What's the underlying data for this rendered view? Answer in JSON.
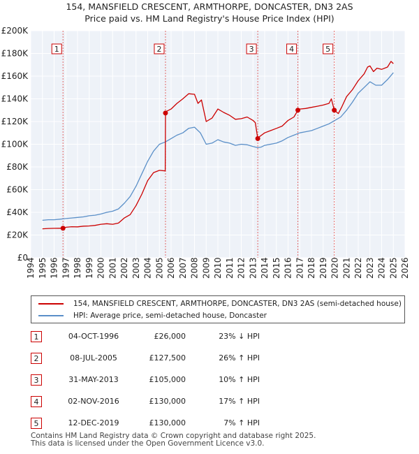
{
  "title_line1": "154, MANSFIELD CRESCENT, ARMTHORPE, DONCASTER, DN3 2AS",
  "title_line2": "Price paid vs. HM Land Registry's House Price Index (HPI)",
  "legend": {
    "property": "154, MANSFIELD CRESCENT, ARMTHORPE, DONCASTER, DN3 2AS (semi-detached house)",
    "hpi": "HPI: Average price, semi-detached house, Doncaster"
  },
  "transactions": [
    {
      "num": "1",
      "date": "04-OCT-1996",
      "price": "£26,000",
      "hpi": "23% ↓ HPI"
    },
    {
      "num": "2",
      "date": "08-JUL-2005",
      "price": "£127,500",
      "hpi": "26% ↑ HPI"
    },
    {
      "num": "3",
      "date": "31-MAY-2013",
      "price": "£105,000",
      "hpi": "10% ↑ HPI"
    },
    {
      "num": "4",
      "date": "02-NOV-2016",
      "price": "£130,000",
      "hpi": "17% ↑ HPI"
    },
    {
      "num": "5",
      "date": "12-DEC-2019",
      "price": "£130,000",
      "hpi": "7% ↑ HPI"
    }
  ],
  "footer_line1": "Contains HM Land Registry data © Crown copyright and database right 2025.",
  "footer_line2": "This data is licensed under the Open Government Licence v3.0.",
  "colors": {
    "property": "#cc0000",
    "hpi": "#5a8fc8",
    "plot_bg": "#eef2f8",
    "grid": "#ffffff",
    "vline": "#e06666"
  },
  "chart_data": {
    "type": "line",
    "title": "154, MANSFIELD CRESCENT, ARMTHORPE, DONCASTER, DN3 2AS",
    "subtitle": "Price paid vs. HM Land Registry's House Price Index (HPI)",
    "xlabel": "",
    "ylabel": "",
    "xlim": [
      1994,
      2026
    ],
    "ylim": [
      0,
      200000
    ],
    "x_ticks": [
      1994,
      1995,
      1996,
      1997,
      1998,
      1999,
      2000,
      2001,
      2002,
      2003,
      2004,
      2005,
      2006,
      2007,
      2008,
      2009,
      2010,
      2011,
      2012,
      2013,
      2014,
      2015,
      2016,
      2017,
      2018,
      2019,
      2020,
      2021,
      2022,
      2023,
      2024,
      2025,
      2026
    ],
    "y_ticks": [
      0,
      20000,
      40000,
      60000,
      80000,
      100000,
      120000,
      140000,
      160000,
      180000,
      200000
    ],
    "y_tick_labels": [
      "£0",
      "£20K",
      "£40K",
      "£60K",
      "£80K",
      "£100K",
      "£120K",
      "£140K",
      "£160K",
      "£180K",
      "£200K"
    ],
    "grid": true,
    "legend_position": "below",
    "series": [
      {
        "name": "154, MANSFIELD CRESCENT, ARMTHORPE, DONCASTER, DN3 2AS (semi-detached house)",
        "x": [
          1995.0,
          1995.5,
          1996.0,
          1996.5,
          1996.76,
          1997.0,
          1997.5,
          1998.0,
          1998.5,
          1999.0,
          1999.5,
          2000.0,
          2000.5,
          2001.0,
          2001.5,
          2002.0,
          2002.5,
          2003.0,
          2003.5,
          2004.0,
          2004.5,
          2005.0,
          2005.5,
          2005.52,
          2005.6,
          2006.0,
          2006.5,
          2007.0,
          2007.5,
          2008.0,
          2008.3,
          2008.6,
          2009.0,
          2009.5,
          2010.0,
          2010.5,
          2011.0,
          2011.5,
          2012.0,
          2012.5,
          2013.0,
          2013.2,
          2013.41,
          2013.6,
          2014.0,
          2014.5,
          2015.0,
          2015.5,
          2016.0,
          2016.5,
          2016.84,
          2017.0,
          2017.5,
          2018.0,
          2018.5,
          2019.0,
          2019.5,
          2019.7,
          2019.95,
          2020.3,
          2020.6,
          2021.0,
          2021.5,
          2022.0,
          2022.5,
          2022.8,
          2023.0,
          2023.3,
          2023.6,
          2024.0,
          2024.5,
          2024.8,
          2025.0
        ],
        "y": [
          25500,
          25800,
          25900,
          26000,
          26000,
          26800,
          27300,
          27200,
          27800,
          28000,
          28500,
          29500,
          30000,
          29500,
          30500,
          35000,
          38000,
          46000,
          56000,
          68000,
          75000,
          77000,
          76500,
          127500,
          129000,
          131000,
          136000,
          140000,
          144500,
          144000,
          136000,
          139000,
          120000,
          123000,
          131000,
          128000,
          125500,
          122000,
          122500,
          124000,
          121000,
          119000,
          105000,
          107000,
          110000,
          112000,
          114000,
          116000,
          121000,
          124000,
          130000,
          131000,
          131500,
          132500,
          133500,
          134500,
          136000,
          140000,
          130000,
          127000,
          133000,
          142000,
          148000,
          156000,
          162000,
          168000,
          169000,
          164000,
          167000,
          166000,
          168000,
          173000,
          171000
        ]
      },
      {
        "name": "HPI: Average price, semi-detached house, Doncaster",
        "x": [
          1995.0,
          1995.5,
          1996.0,
          1996.5,
          1997.0,
          1997.5,
          1998.0,
          1998.5,
          1999.0,
          1999.5,
          2000.0,
          2000.5,
          2001.0,
          2001.5,
          2002.0,
          2002.5,
          2003.0,
          2003.5,
          2004.0,
          2004.5,
          2005.0,
          2005.5,
          2006.0,
          2006.5,
          2007.0,
          2007.5,
          2008.0,
          2008.5,
          2009.0,
          2009.5,
          2010.0,
          2010.5,
          2011.0,
          2011.5,
          2012.0,
          2012.5,
          2013.0,
          2013.4,
          2013.7,
          2014.0,
          2014.5,
          2015.0,
          2015.5,
          2016.0,
          2016.5,
          2017.0,
          2017.5,
          2018.0,
          2018.5,
          2019.0,
          2019.5,
          2020.0,
          2020.5,
          2021.0,
          2021.5,
          2022.0,
          2022.5,
          2023.0,
          2023.5,
          2024.0,
          2024.5,
          2025.0
        ],
        "y": [
          33000,
          33500,
          33500,
          34000,
          34500,
          35000,
          35500,
          36000,
          37000,
          37500,
          38500,
          40000,
          41000,
          43000,
          48000,
          54000,
          63000,
          74000,
          85000,
          94000,
          100000,
          102000,
          105000,
          108000,
          110000,
          114000,
          115000,
          110000,
          100000,
          101000,
          104000,
          102000,
          101000,
          99000,
          100000,
          99500,
          98000,
          97000,
          97500,
          99000,
          100000,
          101000,
          103000,
          106000,
          108000,
          110000,
          111000,
          112000,
          114000,
          116000,
          118000,
          121000,
          124000,
          130000,
          137000,
          145000,
          150000,
          155000,
          152000,
          152000,
          157000,
          163000
        ]
      }
    ],
    "annotations": [
      {
        "label": "1",
        "x": 1996.76,
        "y": 26000
      },
      {
        "label": "2",
        "x": 2005.52,
        "y": 127500
      },
      {
        "label": "3",
        "x": 2013.41,
        "y": 105000
      },
      {
        "label": "4",
        "x": 2016.84,
        "y": 130000
      },
      {
        "label": "5",
        "x": 2019.95,
        "y": 130000
      }
    ]
  }
}
